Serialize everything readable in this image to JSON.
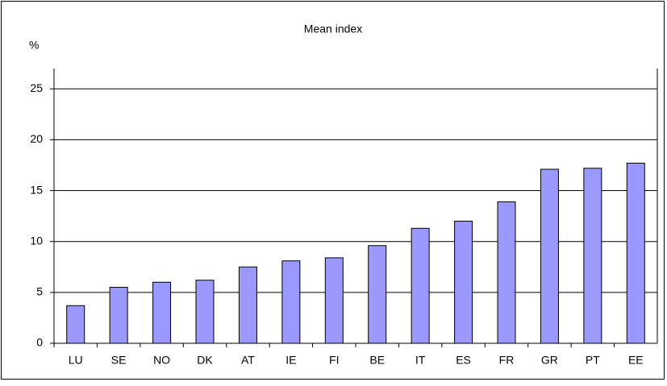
{
  "chart_data": {
    "type": "bar",
    "title": "Mean index",
    "y_label": "%",
    "categories": [
      "LU",
      "SE",
      "NO",
      "DK",
      "AT",
      "IE",
      "FI",
      "BE",
      "IT",
      "ES",
      "FR",
      "GR",
      "PT",
      "EE"
    ],
    "values": [
      3.7,
      5.5,
      6.0,
      6.2,
      7.5,
      8.1,
      8.4,
      9.6,
      11.3,
      12.0,
      13.9,
      17.1,
      17.2,
      17.7
    ],
    "color": "#9999ff",
    "ylim": [
      0,
      27
    ],
    "yticks": [
      0,
      5,
      10,
      15,
      20,
      25
    ],
    "grid": true
  }
}
